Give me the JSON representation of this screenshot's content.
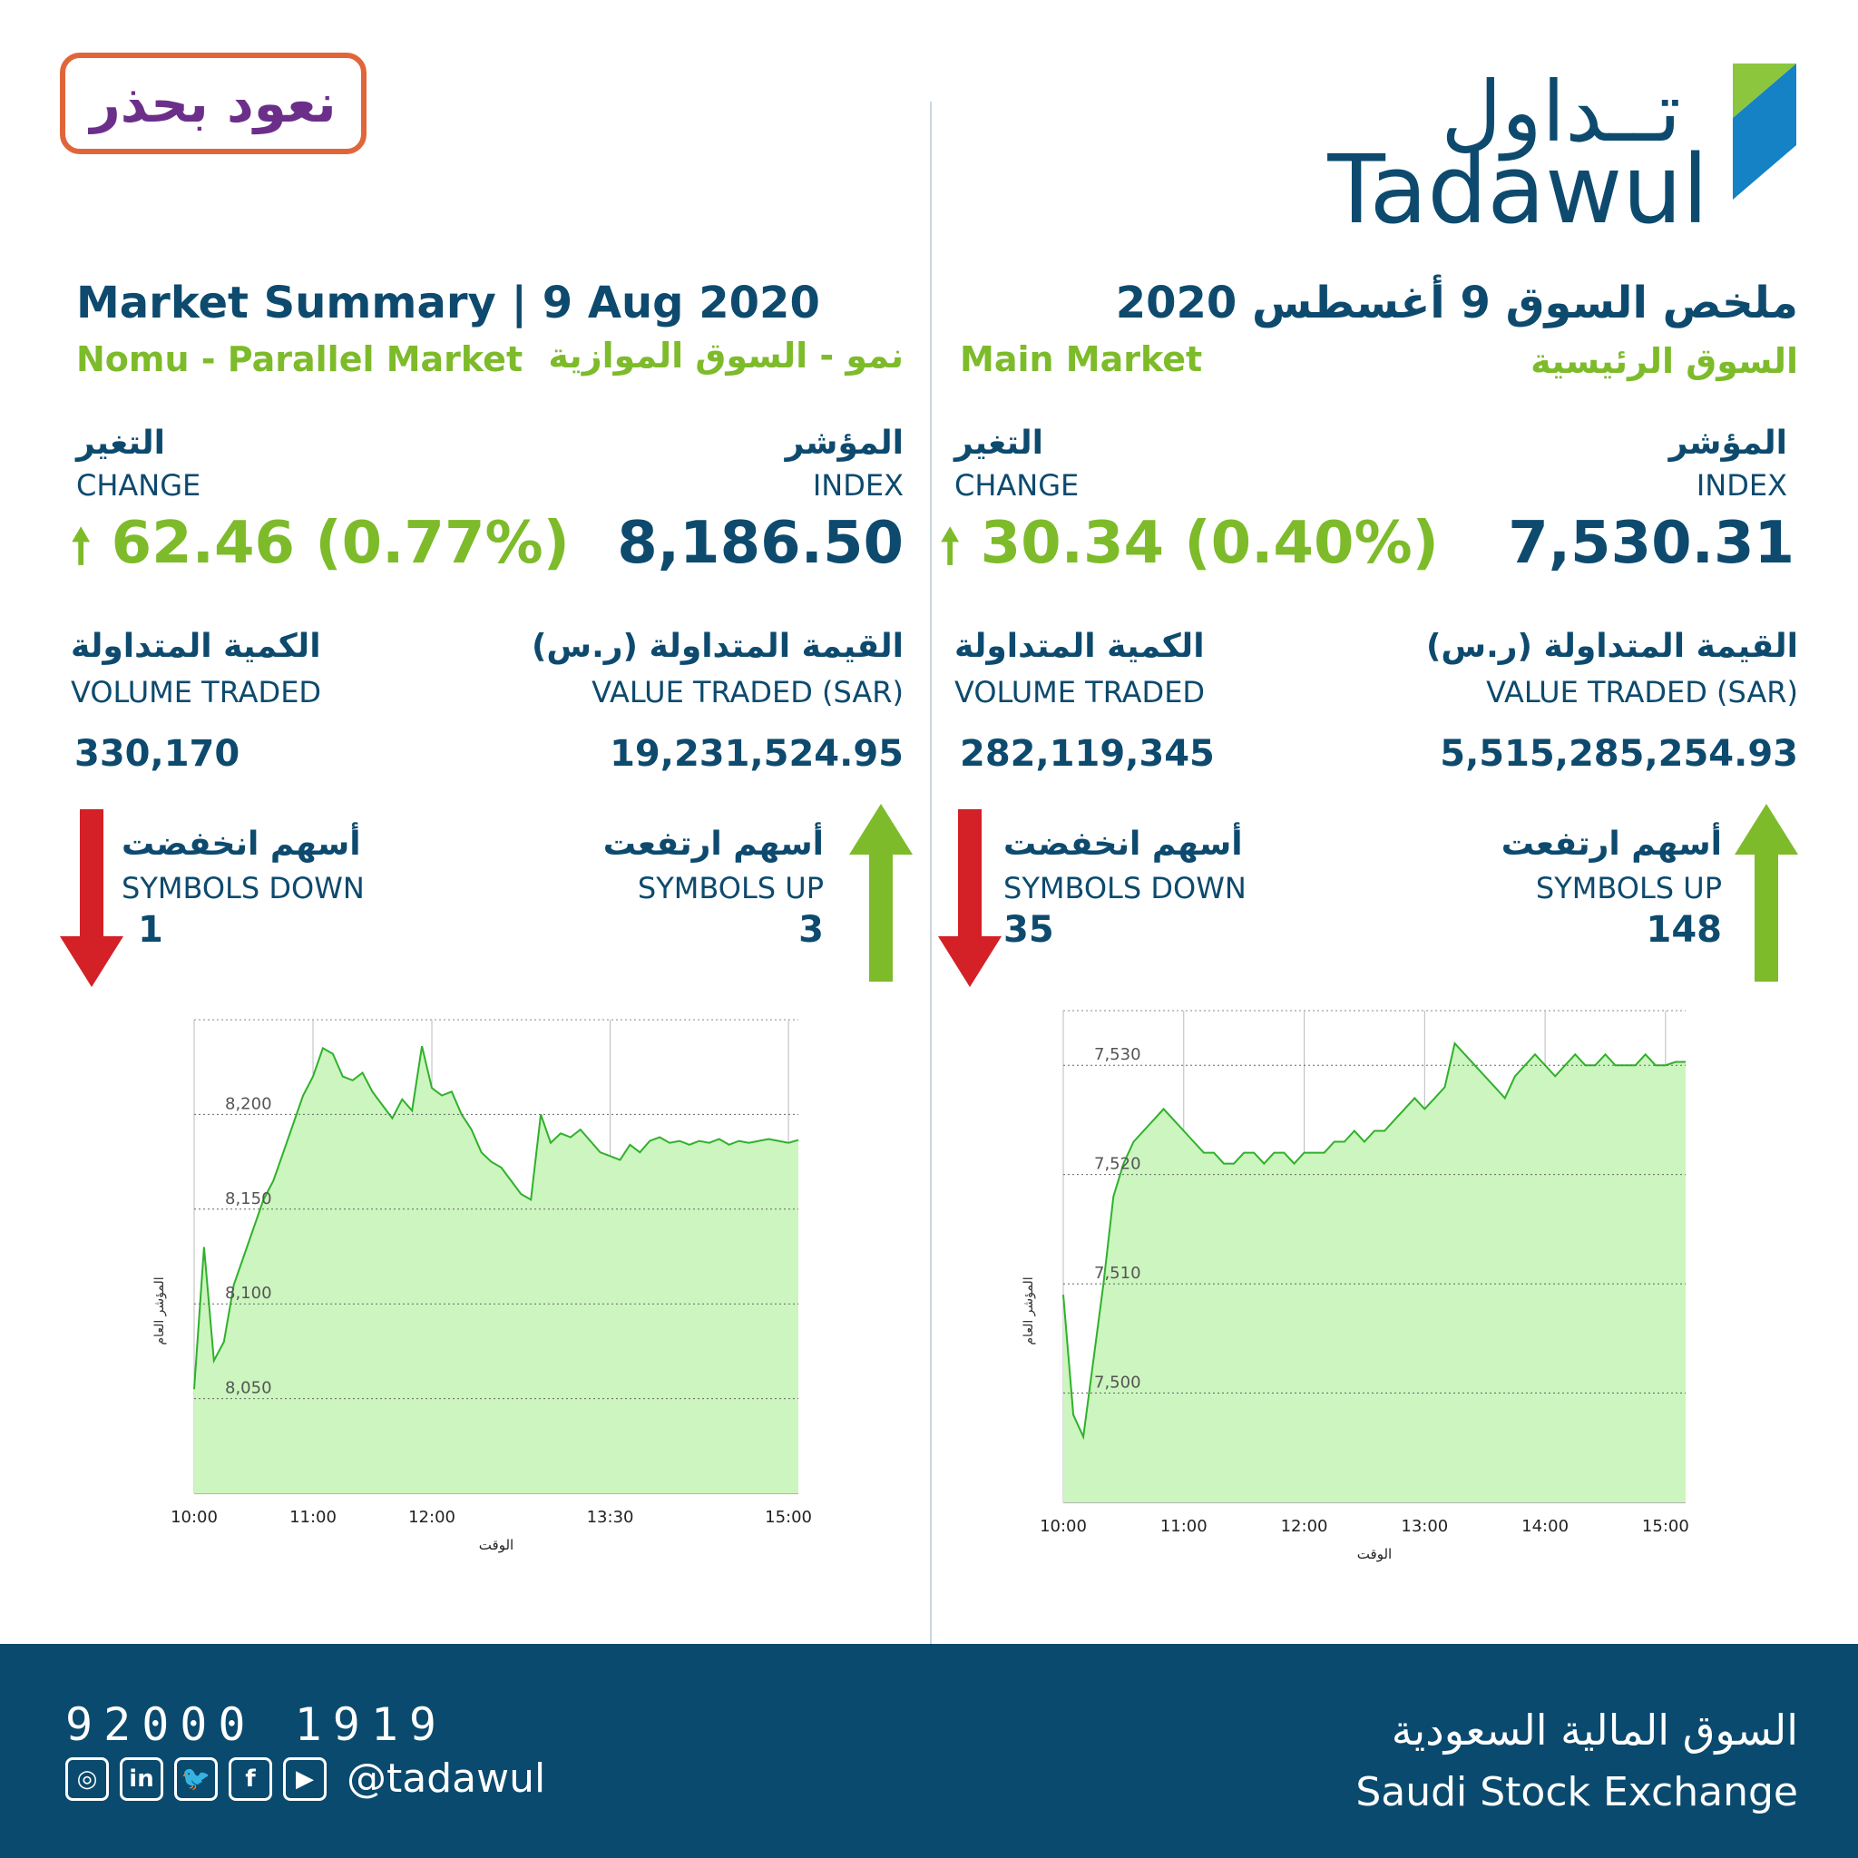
{
  "header": {
    "badge_text": "نعود بحذر",
    "logo_ar": "تــداول",
    "logo_en": "Tadawul"
  },
  "left": {
    "title": "Market Summary | 9 Aug 2020",
    "subtitle_en": "Nomu - Parallel Market",
    "subtitle_ar": "نمو - السوق الموازية",
    "change_label_ar": "التغير",
    "change_label_en": "CHANGE",
    "change_value": "62.46 (0.77%)",
    "index_label_ar": "المؤشر",
    "index_label_en": "INDEX",
    "index_value": "8,186.50",
    "volume_label_ar": "الكمية المتداولة",
    "volume_label_en": "VOLUME TRADED",
    "volume_value": "330,170",
    "valuetr_label_ar": "القيمة المتداولة (ر.س)",
    "valuetr_label_en": "VALUE TRADED (SAR)",
    "valuetr_value": "19,231,524.95",
    "down_label_ar": "أسهم انخفضت",
    "down_label_en": "SYMBOLS DOWN",
    "down_value": "1",
    "up_label_ar": "أسهم ارتفعت",
    "up_label_en": "SYMBOLS UP",
    "up_value": "3"
  },
  "right": {
    "title": "ملخص السوق 9 أغسطس 2020",
    "subtitle_en": "Main Market",
    "subtitle_ar": "السوق الرئيسية",
    "change_label_ar": "التغير",
    "change_label_en": "CHANGE",
    "change_value": "30.34 (0.40%)",
    "index_label_ar": "المؤشر",
    "index_label_en": "INDEX",
    "index_value": "7,530.31",
    "volume_label_ar": "الكمية المتداولة",
    "volume_label_en": "VOLUME TRADED",
    "volume_value": "282,119,345",
    "valuetr_label_ar": "القيمة المتداولة (ر.س)",
    "valuetr_label_en": "VALUE TRADED (SAR)",
    "valuetr_value": "5,515,285,254.93",
    "down_label_ar": "أسهم انخفضت",
    "down_label_en": "SYMBOLS DOWN",
    "down_value": "35",
    "up_label_ar": "أسهم ارتفعت",
    "up_label_en": "SYMBOLS UP",
    "up_value": "148"
  },
  "colors": {
    "navy": "#0d4a6e",
    "green": "#7dbb2a",
    "red": "#d42027",
    "area_fill": "#ccf5bf",
    "line": "#2fb12a"
  },
  "footer": {
    "phone": "92000 1919",
    "handle": "@tadawul",
    "exchange_ar": "السوق المالية السعودية",
    "exchange_en": "Saudi Stock Exchange",
    "social_icons": [
      "instagram-icon",
      "linkedin-icon",
      "twitter-icon",
      "facebook-icon",
      "youtube-icon"
    ]
  },
  "chart_data": [
    {
      "type": "area",
      "title": "",
      "xlabel": "الوقت",
      "ylabel": "المؤشر العام",
      "x_ticks": [
        "10:00",
        "11:00",
        "12:00",
        "13:30",
        "15:00"
      ],
      "y_ticks": [
        8050,
        8100,
        8150,
        8200
      ],
      "y_tick_labels": [
        "8,050",
        "8,100",
        "8,150",
        "8,200"
      ],
      "ylim": [
        8000,
        8250
      ],
      "xlim": [
        "10:00",
        "15:05"
      ],
      "x": [
        "10:00",
        "10:05",
        "10:10",
        "10:15",
        "10:20",
        "10:25",
        "10:30",
        "10:35",
        "10:40",
        "10:45",
        "10:50",
        "10:55",
        "11:00",
        "11:05",
        "11:10",
        "11:15",
        "11:20",
        "11:25",
        "11:30",
        "11:35",
        "11:40",
        "11:45",
        "11:50",
        "11:55",
        "12:00",
        "12:05",
        "12:10",
        "12:15",
        "12:20",
        "12:25",
        "12:30",
        "12:35",
        "12:40",
        "12:45",
        "12:50",
        "12:55",
        "13:00",
        "13:05",
        "13:10",
        "13:15",
        "13:20",
        "13:25",
        "13:30",
        "13:35",
        "13:40",
        "13:45",
        "13:50",
        "13:55",
        "14:00",
        "14:05",
        "14:10",
        "14:15",
        "14:20",
        "14:25",
        "14:30",
        "14:35",
        "14:40",
        "14:45",
        "14:50",
        "14:55",
        "15:00",
        "15:05"
      ],
      "values": [
        8055,
        8130,
        8070,
        8080,
        8110,
        8125,
        8140,
        8155,
        8165,
        8180,
        8195,
        8210,
        8220,
        8235,
        8232,
        8220,
        8218,
        8222,
        8212,
        8205,
        8198,
        8208,
        8202,
        8236,
        8214,
        8210,
        8212,
        8200,
        8192,
        8180,
        8175,
        8172,
        8165,
        8158,
        8155,
        8200,
        8185,
        8190,
        8188,
        8192,
        8186,
        8180,
        8178,
        8176,
        8184,
        8180,
        8186,
        8188,
        8185,
        8186,
        8184,
        8186,
        8185,
        8187,
        8184,
        8186,
        8185,
        8186,
        8187,
        8186,
        8185,
        8186.5
      ]
    },
    {
      "type": "area",
      "title": "",
      "xlabel": "الوقت",
      "ylabel": "المؤشر العام",
      "x_ticks": [
        "10:00",
        "11:00",
        "12:00",
        "13:00",
        "14:00",
        "15:00"
      ],
      "y_ticks": [
        7500,
        7510,
        7520,
        7530
      ],
      "y_tick_labels": [
        "7,500",
        "7,510",
        "7,520",
        "7,530"
      ],
      "ylim": [
        7490,
        7535
      ],
      "xlim": [
        "10:00",
        "15:10"
      ],
      "x": [
        "10:00",
        "10:05",
        "10:10",
        "10:15",
        "10:20",
        "10:25",
        "10:30",
        "10:35",
        "10:40",
        "10:45",
        "10:50",
        "10:55",
        "11:00",
        "11:05",
        "11:10",
        "11:15",
        "11:20",
        "11:25",
        "11:30",
        "11:35",
        "11:40",
        "11:45",
        "11:50",
        "11:55",
        "12:00",
        "12:05",
        "12:10",
        "12:15",
        "12:20",
        "12:25",
        "12:30",
        "12:35",
        "12:40",
        "12:45",
        "12:50",
        "12:55",
        "13:00",
        "13:05",
        "13:10",
        "13:15",
        "13:20",
        "13:25",
        "13:30",
        "13:35",
        "13:40",
        "13:45",
        "13:50",
        "13:55",
        "14:00",
        "14:05",
        "14:10",
        "14:15",
        "14:20",
        "14:25",
        "14:30",
        "14:35",
        "14:40",
        "14:45",
        "14:50",
        "14:55",
        "15:00",
        "15:05",
        "15:10"
      ],
      "values": [
        7509,
        7498,
        7496,
        7503,
        7510,
        7518,
        7521,
        7523,
        7524,
        7525,
        7526,
        7525,
        7524,
        7523,
        7522,
        7522,
        7521,
        7521,
        7522,
        7522,
        7521,
        7522,
        7522,
        7521,
        7522,
        7522,
        7522,
        7523,
        7523,
        7524,
        7523,
        7524,
        7524,
        7525,
        7526,
        7527,
        7526,
        7527,
        7528,
        7532,
        7531,
        7530,
        7529,
        7528,
        7527,
        7529,
        7530,
        7531,
        7530,
        7529,
        7530,
        7531,
        7530,
        7530,
        7531,
        7530,
        7530,
        7530,
        7531,
        7530,
        7530,
        7530.31,
        7530.31
      ]
    }
  ]
}
